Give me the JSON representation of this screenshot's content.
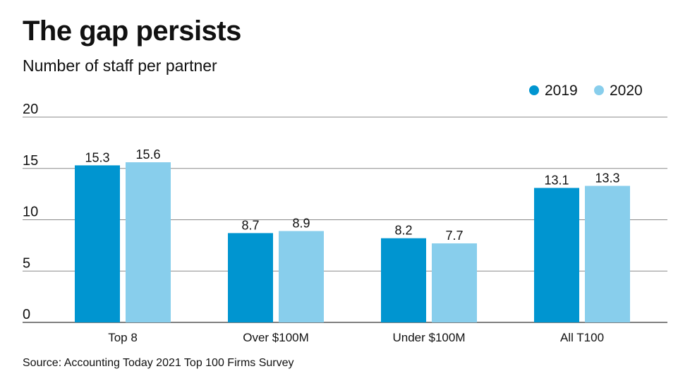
{
  "chart_data": {
    "type": "bar",
    "title": "The gap persists",
    "subtitle": "Number of staff per partner",
    "source": "Source: Accounting Today 2021 Top 100 Firms Survey",
    "categories": [
      "Top 8",
      "Over $100M",
      "Under $100M",
      "All T100"
    ],
    "series": [
      {
        "name": "2019",
        "color": "#0095d0",
        "values": [
          15.3,
          8.7,
          8.2,
          13.1
        ],
        "labels": [
          "15.3",
          "8.7",
          "8.2",
          "13.1"
        ]
      },
      {
        "name": "2020",
        "color": "#88ceec",
        "values": [
          15.6,
          8.9,
          7.7,
          13.3
        ],
        "labels": [
          "15.6",
          "8.9",
          "7.7",
          "13.3"
        ]
      }
    ],
    "yticks": [
      "0",
      "5",
      "10",
      "15",
      "20"
    ],
    "ylim": [
      0,
      20
    ],
    "grid": true,
    "legend": "top-right"
  }
}
